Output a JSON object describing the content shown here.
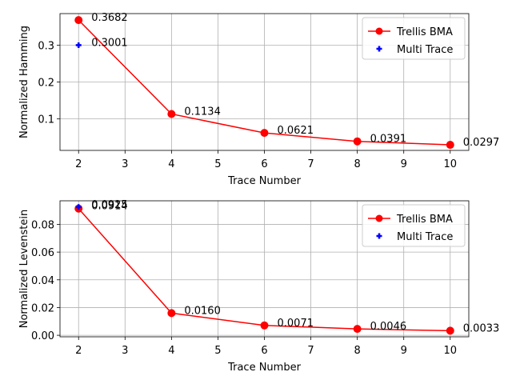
{
  "chart_data": [
    {
      "type": "line",
      "xlabel": "Trace Number",
      "ylabel": "Normalized Hamming",
      "xlim": [
        1.6,
        10.4
      ],
      "ylim": [
        0.0146,
        0.3858
      ],
      "xticks": [
        2,
        3,
        4,
        5,
        6,
        7,
        8,
        9,
        10
      ],
      "yticks": [
        0.1,
        0.2,
        0.3
      ],
      "ytick_labels": [
        "0.1",
        "0.2",
        "0.3"
      ],
      "grid": true,
      "legend": "top-right",
      "series": [
        {
          "name": "Trellis BMA",
          "color": "#ff0000",
          "marker": "circle",
          "line": true,
          "x": [
            2,
            4,
            6,
            8,
            10
          ],
          "y": [
            0.3682,
            0.1134,
            0.0621,
            0.0391,
            0.0297
          ],
          "labels": [
            "0.3682",
            "0.1134",
            "0.0621",
            "0.0391",
            "0.0297"
          ]
        },
        {
          "name": "Multi Trace",
          "color": "#0000ff",
          "marker": "plus",
          "line": false,
          "x": [
            2
          ],
          "y": [
            0.3001
          ],
          "labels": [
            "0.3001"
          ]
        }
      ]
    },
    {
      "type": "line",
      "xlabel": "Trace Number",
      "ylabel": "Normalized Levenstein",
      "xlim": [
        1.6,
        10.4
      ],
      "ylim": [
        -0.0011,
        0.097
      ],
      "xticks": [
        2,
        3,
        4,
        5,
        6,
        7,
        8,
        9,
        10
      ],
      "yticks": [
        0.0,
        0.02,
        0.04,
        0.06,
        0.08
      ],
      "ytick_labels": [
        "0.00",
        "0.02",
        "0.04",
        "0.06",
        "0.08"
      ],
      "grid": true,
      "legend": "top-right",
      "series": [
        {
          "name": "Trellis BMA",
          "color": "#ff0000",
          "marker": "circle",
          "line": true,
          "x": [
            2,
            4,
            6,
            8,
            10
          ],
          "y": [
            0.0914,
            0.016,
            0.0071,
            0.0046,
            0.0033
          ],
          "labels": [
            "0.0914",
            "0.0160",
            "0.0071",
            "0.0046",
            "0.0033"
          ]
        },
        {
          "name": "Multi Trace",
          "color": "#0000ff",
          "marker": "plus",
          "line": false,
          "x": [
            2
          ],
          "y": [
            0.0925
          ],
          "labels": [
            "0.0925"
          ]
        }
      ]
    }
  ]
}
